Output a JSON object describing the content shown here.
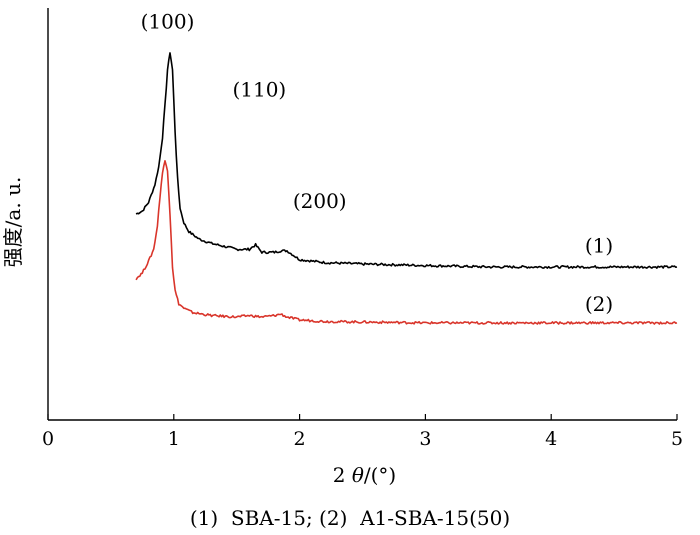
{
  "chart_data": {
    "type": "line",
    "xlabel_prefix": "2",
    "xlabel_theta": "θ",
    "xlabel_suffix": "/(°)",
    "ylabel": "强度/a. u.",
    "xlim": [
      0,
      5
    ],
    "x_ticks": [
      "0",
      "1",
      "2",
      "3",
      "4",
      "5"
    ],
    "y_ticks_shown": false,
    "series": [
      {
        "name": "(1)",
        "color": "#000000",
        "points": [
          [
            0.7,
            0.7
          ],
          [
            0.75,
            0.71
          ],
          [
            0.8,
            0.74
          ],
          [
            0.85,
            0.8
          ],
          [
            0.88,
            0.86
          ],
          [
            0.91,
            0.96
          ],
          [
            0.93,
            1.07
          ],
          [
            0.95,
            1.19
          ],
          [
            0.97,
            1.25
          ],
          [
            0.99,
            1.19
          ],
          [
            1.01,
            0.98
          ],
          [
            1.03,
            0.82
          ],
          [
            1.05,
            0.72
          ],
          [
            1.08,
            0.67
          ],
          [
            1.12,
            0.64
          ],
          [
            1.2,
            0.615
          ],
          [
            1.3,
            0.6
          ],
          [
            1.4,
            0.59
          ],
          [
            1.5,
            0.58
          ],
          [
            1.6,
            0.58
          ],
          [
            1.65,
            0.595
          ],
          [
            1.7,
            0.57
          ],
          [
            1.8,
            0.57
          ],
          [
            1.85,
            0.575
          ],
          [
            1.9,
            0.575
          ],
          [
            1.95,
            0.56
          ],
          [
            2.0,
            0.545
          ],
          [
            2.2,
            0.535
          ],
          [
            2.5,
            0.53
          ],
          [
            3.0,
            0.525
          ],
          [
            3.5,
            0.52
          ],
          [
            4.0,
            0.52
          ],
          [
            4.5,
            0.52
          ],
          [
            5.0,
            0.52
          ]
        ],
        "label": "(1)"
      },
      {
        "name": "(2)",
        "color": "#d9352b",
        "points": [
          [
            0.7,
            0.48
          ],
          [
            0.75,
            0.5
          ],
          [
            0.8,
            0.54
          ],
          [
            0.84,
            0.58
          ],
          [
            0.87,
            0.66
          ],
          [
            0.89,
            0.76
          ],
          [
            0.91,
            0.84
          ],
          [
            0.93,
            0.88
          ],
          [
            0.95,
            0.85
          ],
          [
            0.97,
            0.7
          ],
          [
            0.99,
            0.52
          ],
          [
            1.01,
            0.44
          ],
          [
            1.04,
            0.395
          ],
          [
            1.08,
            0.38
          ],
          [
            1.15,
            0.365
          ],
          [
            1.3,
            0.355
          ],
          [
            1.5,
            0.35
          ],
          [
            1.6,
            0.355
          ],
          [
            1.7,
            0.35
          ],
          [
            1.8,
            0.355
          ],
          [
            1.85,
            0.36
          ],
          [
            1.9,
            0.35
          ],
          [
            2.0,
            0.34
          ],
          [
            2.2,
            0.335
          ],
          [
            2.5,
            0.333
          ],
          [
            3.0,
            0.33
          ],
          [
            3.5,
            0.33
          ],
          [
            4.0,
            0.33
          ],
          [
            4.5,
            0.33
          ],
          [
            5.0,
            0.33
          ]
        ],
        "label": "(2)"
      }
    ],
    "annotations": [
      {
        "text": "(100)",
        "x": 0.95,
        "y": 1.33
      },
      {
        "text": "(110)",
        "x": 1.68,
        "y": 1.1
      },
      {
        "text": "(200)",
        "x": 2.16,
        "y": 0.72
      }
    ],
    "series_labels": [
      {
        "text": "(1)",
        "x": 4.38,
        "y": 0.57
      },
      {
        "text": "(2)",
        "x": 4.38,
        "y": 0.37
      }
    ],
    "caption": "(1)  SBA-15; (2)  A1-SBA-15(50)"
  }
}
